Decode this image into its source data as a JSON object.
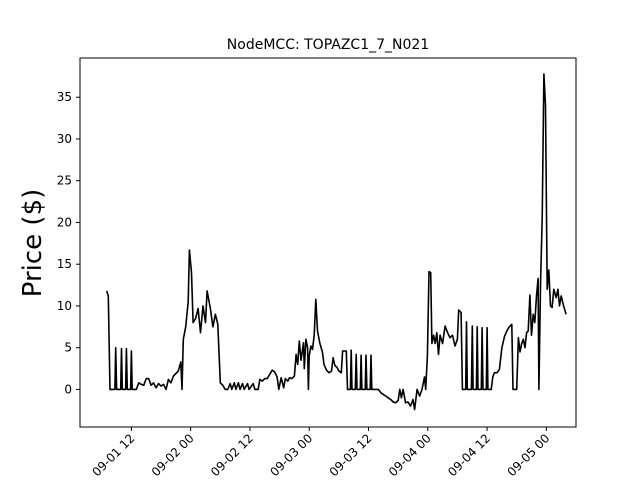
{
  "chart_data": {
    "type": "line",
    "title": "NodeMCC: TOPAZC1_7_N021",
    "xlabel": "",
    "ylabel": "Price ($)",
    "ylim": [
      -4.5,
      39.7
    ],
    "xlim": [
      "09-01 01:36",
      "09-05 06:00"
    ],
    "x_ticks": [
      {
        "label": "09-01 12",
        "value": "09-01 12:00"
      },
      {
        "label": "09-02 00",
        "value": "09-02 00:00"
      },
      {
        "label": "09-02 12",
        "value": "09-02 12:00"
      },
      {
        "label": "09-03 00",
        "value": "09-03 00:00"
      },
      {
        "label": "09-03 12",
        "value": "09-03 12:00"
      },
      {
        "label": "09-04 00",
        "value": "09-04 00:00"
      },
      {
        "label": "09-04 12",
        "value": "09-04 12:00"
      },
      {
        "label": "09-05 00",
        "value": "09-05 00:00"
      }
    ],
    "y_ticks": [
      0,
      5,
      10,
      15,
      20,
      25,
      30,
      35
    ],
    "grid": false,
    "color": "#000000",
    "series": [
      {
        "name": "",
        "points": [
          [
            "09-01 07:00",
            11.8
          ],
          [
            "09-01 07:20",
            11.2
          ],
          [
            "09-01 07:40",
            0
          ],
          [
            "09-01 08:40",
            0
          ],
          [
            "09-01 08:50",
            5.0
          ],
          [
            "09-01 09:00",
            0
          ],
          [
            "09-01 09:50",
            0
          ],
          [
            "09-01 10:00",
            4.9
          ],
          [
            "09-01 10:10",
            0
          ],
          [
            "09-01 10:50",
            0
          ],
          [
            "09-01 11:00",
            4.9
          ],
          [
            "09-01 11:10",
            0
          ],
          [
            "09-01 11:50",
            0
          ],
          [
            "09-01 12:00",
            4.6
          ],
          [
            "09-01 12:10",
            0
          ],
          [
            "09-01 13:00",
            0
          ],
          [
            "09-01 13:30",
            0.8
          ],
          [
            "09-01 14:00",
            0.6
          ],
          [
            "09-01 14:30",
            0.5
          ],
          [
            "09-01 15:00",
            1.3
          ],
          [
            "09-01 15:30",
            1.3
          ],
          [
            "09-01 16:00",
            0.5
          ],
          [
            "09-01 16:30",
            0.8
          ],
          [
            "09-01 17:00",
            0.2
          ],
          [
            "09-01 17:30",
            0.7
          ],
          [
            "09-01 18:00",
            0.4
          ],
          [
            "09-01 18:30",
            0.6
          ],
          [
            "09-01 19:00",
            0
          ],
          [
            "09-01 19:30",
            1.2
          ],
          [
            "09-01 20:00",
            0.8
          ],
          [
            "09-01 20:30",
            1.6
          ],
          [
            "09-01 21:30",
            2.2
          ],
          [
            "09-01 22:00",
            3.3
          ],
          [
            "09-01 22:15",
            0
          ],
          [
            "09-01 22:30",
            6.0
          ],
          [
            "09-01 23:00",
            7.5
          ],
          [
            "09-01 23:30",
            10.5
          ],
          [
            "09-01 23:45",
            16.7
          ],
          [
            "09-02 00:10",
            14.0
          ],
          [
            "09-02 00:30",
            8.0
          ],
          [
            "09-02 01:00",
            8.5
          ],
          [
            "09-02 01:30",
            9.7
          ],
          [
            "09-02 02:00",
            6.8
          ],
          [
            "09-02 02:30",
            10.0
          ],
          [
            "09-02 03:00",
            8.0
          ],
          [
            "09-02 03:20",
            11.8
          ],
          [
            "09-02 04:00",
            9.7
          ],
          [
            "09-02 04:30",
            7.5
          ],
          [
            "09-02 05:00",
            9.0
          ],
          [
            "09-02 05:30",
            7.8
          ],
          [
            "09-02 06:00",
            0.8
          ],
          [
            "09-02 06:30",
            0.5
          ],
          [
            "09-02 07:00",
            0
          ],
          [
            "09-02 07:30",
            0
          ],
          [
            "09-02 08:00",
            0.7
          ],
          [
            "09-02 08:20",
            0
          ],
          [
            "09-02 08:50",
            0.8
          ],
          [
            "09-02 09:10",
            0
          ],
          [
            "09-02 09:40",
            0.8
          ],
          [
            "09-02 10:00",
            0
          ],
          [
            "09-02 10:30",
            0.7
          ],
          [
            "09-02 10:50",
            0
          ],
          [
            "09-02 11:30",
            0.7
          ],
          [
            "09-02 11:50",
            0
          ],
          [
            "09-02 12:40",
            0.7
          ],
          [
            "09-02 13:00",
            0
          ],
          [
            "09-02 13:40",
            0
          ],
          [
            "09-02 14:00",
            1.2
          ],
          [
            "09-02 14:30",
            1.0
          ],
          [
            "09-02 15:00",
            1.3
          ],
          [
            "09-02 15:30",
            1.3
          ],
          [
            "09-02 16:30",
            2.3
          ],
          [
            "09-02 17:00",
            2.1
          ],
          [
            "09-02 17:30",
            1.5
          ],
          [
            "09-02 17:50",
            0
          ],
          [
            "09-02 18:20",
            1.4
          ],
          [
            "09-02 18:50",
            0.2
          ],
          [
            "09-02 19:10",
            1.3
          ],
          [
            "09-02 19:40",
            1.0
          ],
          [
            "09-02 20:00",
            1.4
          ],
          [
            "09-02 20:30",
            1.3
          ],
          [
            "09-02 21:00",
            1.6
          ],
          [
            "09-02 21:20",
            4.2
          ],
          [
            "09-02 21:40",
            3.0
          ],
          [
            "09-02 22:00",
            5.8
          ],
          [
            "09-02 22:20",
            3.5
          ],
          [
            "09-02 22:40",
            4.8
          ],
          [
            "09-02 22:50",
            5.6
          ],
          [
            "09-02 23:00",
            2.5
          ],
          [
            "09-02 23:20",
            6.0
          ],
          [
            "09-02 23:40",
            5.0
          ],
          [
            "09-02 23:50",
            0
          ],
          [
            "09-03 00:00",
            4.0
          ],
          [
            "09-03 00:20",
            5.2
          ],
          [
            "09-03 00:40",
            4.8
          ],
          [
            "09-03 01:00",
            6.5
          ],
          [
            "09-03 01:20",
            10.8
          ],
          [
            "09-03 01:40",
            7.0
          ],
          [
            "09-03 02:10",
            5.5
          ],
          [
            "09-03 02:40",
            4.5
          ],
          [
            "09-03 03:00",
            3.0
          ],
          [
            "09-03 03:30",
            2.3
          ],
          [
            "09-03 04:00",
            2.0
          ],
          [
            "09-03 04:30",
            2.2
          ],
          [
            "09-03 04:50",
            3.8
          ],
          [
            "09-03 05:10",
            2.9
          ],
          [
            "09-03 05:40",
            2.6
          ],
          [
            "09-03 06:00",
            2.2
          ],
          [
            "09-03 06:30",
            2.0
          ],
          [
            "09-03 06:45",
            4.6
          ],
          [
            "09-03 07:30",
            4.6
          ],
          [
            "09-03 07:45",
            0
          ],
          [
            "09-03 08:20",
            0
          ],
          [
            "09-03 08:30",
            4.7
          ],
          [
            "09-03 08:40",
            0
          ],
          [
            "09-03 09:20",
            0
          ],
          [
            "09-03 09:30",
            4.2
          ],
          [
            "09-03 09:40",
            0
          ],
          [
            "09-03 10:20",
            0
          ],
          [
            "09-03 10:30",
            4.1
          ],
          [
            "09-03 10:40",
            0
          ],
          [
            "09-03 11:20",
            0
          ],
          [
            "09-03 11:30",
            4.1
          ],
          [
            "09-03 11:40",
            0
          ],
          [
            "09-03 12:20",
            0
          ],
          [
            "09-03 12:30",
            4.1
          ],
          [
            "09-03 12:40",
            0
          ],
          [
            "09-03 13:00",
            0
          ],
          [
            "09-03 14:00",
            0
          ],
          [
            "09-03 14:30",
            -0.4
          ],
          [
            "09-03 15:00",
            -0.6
          ],
          [
            "09-03 15:30",
            -0.8
          ],
          [
            "09-03 16:00",
            -1.0
          ],
          [
            "09-03 16:30",
            -1.2
          ],
          [
            "09-03 17:00",
            -1.5
          ],
          [
            "09-03 17:30",
            -1.6
          ],
          [
            "09-03 18:00",
            -1.3
          ],
          [
            "09-03 18:20",
            0
          ],
          [
            "09-03 18:40",
            -1.0
          ],
          [
            "09-03 19:00",
            0
          ],
          [
            "09-03 19:30",
            -1.6
          ],
          [
            "09-03 20:00",
            -1.5
          ],
          [
            "09-03 20:30",
            -2.0
          ],
          [
            "09-03 21:00",
            -1.2
          ],
          [
            "09-03 21:20",
            -2.4
          ],
          [
            "09-03 21:50",
            0
          ],
          [
            "09-03 22:20",
            -0.8
          ],
          [
            "09-03 22:50",
            0
          ],
          [
            "09-03 23:20",
            1.5
          ],
          [
            "09-03 23:35",
            0
          ],
          [
            "09-03 23:55",
            4.0
          ],
          [
            "09-04 00:15",
            14.1
          ],
          [
            "09-04 00:35",
            14.0
          ],
          [
            "09-04 00:50",
            5.5
          ],
          [
            "09-04 01:10",
            6.5
          ],
          [
            "09-04 01:30",
            5.5
          ],
          [
            "09-04 01:50",
            6.8
          ],
          [
            "09-04 02:10",
            4.2
          ],
          [
            "09-04 02:30",
            6.5
          ],
          [
            "09-04 03:00",
            5.5
          ],
          [
            "09-04 03:30",
            7.6
          ],
          [
            "09-04 04:00",
            6.8
          ],
          [
            "09-04 04:30",
            6.2
          ],
          [
            "09-04 05:00",
            6.5
          ],
          [
            "09-04 05:30",
            5.2
          ],
          [
            "09-04 06:00",
            6.0
          ],
          [
            "09-04 06:15",
            9.5
          ],
          [
            "09-04 06:45",
            9.2
          ],
          [
            "09-04 07:00",
            0
          ],
          [
            "09-04 07:40",
            0
          ],
          [
            "09-04 07:50",
            8.1
          ],
          [
            "09-04 08:00",
            0
          ],
          [
            "09-04 08:50",
            0
          ],
          [
            "09-04 09:00",
            7.6
          ],
          [
            "09-04 09:10",
            0
          ],
          [
            "09-04 09:50",
            0
          ],
          [
            "09-04 10:00",
            7.5
          ],
          [
            "09-04 10:10",
            0
          ],
          [
            "09-04 10:50",
            0
          ],
          [
            "09-04 11:00",
            7.4
          ],
          [
            "09-04 11:10",
            0
          ],
          [
            "09-04 11:50",
            0
          ],
          [
            "09-04 12:00",
            7.4
          ],
          [
            "09-04 12:10",
            0
          ],
          [
            "09-04 12:50",
            0
          ],
          [
            "09-04 13:10",
            1.5
          ],
          [
            "09-04 13:30",
            2.0
          ],
          [
            "09-04 14:00",
            2.0
          ],
          [
            "09-04 14:30",
            2.4
          ],
          [
            "09-04 15:00",
            5.0
          ],
          [
            "09-04 15:30",
            6.3
          ],
          [
            "09-04 16:00",
            7.0
          ],
          [
            "09-04 16:30",
            7.5
          ],
          [
            "09-04 17:00",
            7.8
          ],
          [
            "09-04 17:15",
            0
          ],
          [
            "09-04 18:00",
            0
          ],
          [
            "09-04 18:20",
            6.2
          ],
          [
            "09-04 18:40",
            4.5
          ],
          [
            "09-04 19:00",
            5.5
          ],
          [
            "09-04 19:20",
            6.0
          ],
          [
            "09-04 19:40",
            5.0
          ],
          [
            "09-04 20:00",
            6.8
          ],
          [
            "09-04 20:20",
            7.0
          ],
          [
            "09-04 20:40",
            11.3
          ],
          [
            "09-04 21:00",
            6.5
          ],
          [
            "09-04 21:20",
            9.0
          ],
          [
            "09-04 21:40",
            8.0
          ],
          [
            "09-04 22:00",
            11.2
          ],
          [
            "09-04 22:20",
            13.3
          ],
          [
            "09-04 22:30",
            0
          ],
          [
            "09-04 22:50",
            13.0
          ],
          [
            "09-04 23:10",
            20.5
          ],
          [
            "09-04 23:30",
            37.8
          ],
          [
            "09-04 23:50",
            34.0
          ],
          [
            "09-05 00:10",
            12.0
          ],
          [
            "09-05 00:30",
            14.3
          ],
          [
            "09-05 00:50",
            10.0
          ],
          [
            "09-05 01:10",
            9.8
          ],
          [
            "09-05 01:30",
            12.0
          ],
          [
            "09-05 02:00",
            11.0
          ],
          [
            "09-05 02:20",
            12.0
          ],
          [
            "09-05 02:40",
            10.0
          ],
          [
            "09-05 03:00",
            11.2
          ],
          [
            "09-05 03:30",
            10.0
          ],
          [
            "09-05 04:00",
            9.0
          ]
        ]
      }
    ]
  }
}
